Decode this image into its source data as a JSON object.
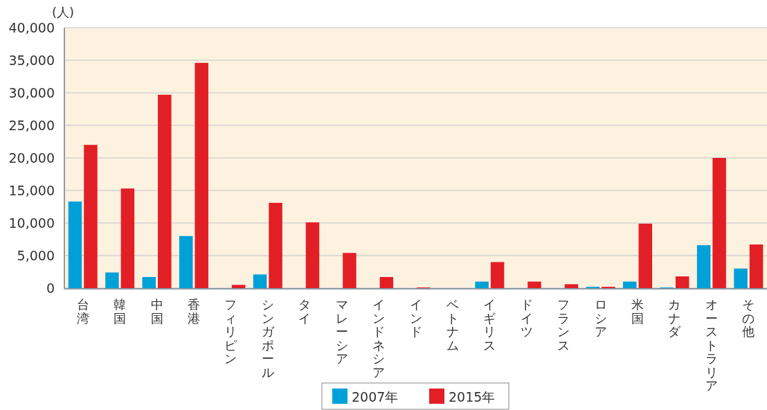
{
  "chart_data": {
    "type": "bar",
    "ylabel": "(人)",
    "categories": [
      "台湾",
      "韓国",
      "中国",
      "香港",
      "フィリピン",
      "シンガポール",
      "タイ",
      "マレーシア",
      "インドネシア",
      "インド",
      "ベトナム",
      "イギリス",
      "ドイツ",
      "フランス",
      "ロシア",
      "米国",
      "カナダ",
      "オーストラリア",
      "その他"
    ],
    "series": [
      {
        "name": "2007年",
        "color": "#00a0d9",
        "values": [
          13300,
          2400,
          1700,
          8000,
          0,
          2100,
          0,
          0,
          0,
          0,
          0,
          1000,
          0,
          0,
          200,
          1000,
          100,
          6600,
          3000
        ]
      },
      {
        "name": "2015年",
        "color": "#e31f26",
        "values": [
          22000,
          15300,
          29700,
          34600,
          500,
          13100,
          10100,
          5400,
          1700,
          100,
          0,
          4000,
          1000,
          600,
          200,
          9900,
          1800,
          20000,
          6700
        ]
      }
    ],
    "ylim": [
      0,
      40000
    ],
    "yticks": [
      {
        "value": 0,
        "label": "0"
      },
      {
        "value": 5000,
        "label": "5,000"
      },
      {
        "value": 10000,
        "label": "10,000"
      },
      {
        "value": 15000,
        "label": "15,000"
      },
      {
        "value": 20000,
        "label": "20,000"
      },
      {
        "value": 25000,
        "label": "25,000"
      },
      {
        "value": 30000,
        "label": "30,000"
      },
      {
        "value": 35000,
        "label": "35,000"
      },
      {
        "value": 40000,
        "label": "40,000"
      }
    ],
    "grid": "y",
    "legend": "bottom"
  }
}
